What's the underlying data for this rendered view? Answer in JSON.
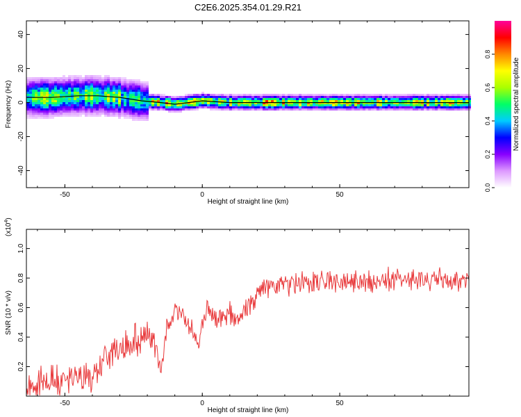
{
  "chart_data": [
    {
      "type": "heatmap",
      "title": "C2E6.2025.354.01.29.R21",
      "xlabel": "Height of straight line (km)",
      "ylabel": "Frequency (Hz)",
      "xlim": [
        -64,
        97
      ],
      "ylim": [
        -50,
        48
      ],
      "xticks": [
        -50,
        0,
        50
      ],
      "yticks": [
        -40,
        -20,
        0,
        20,
        40
      ],
      "xtick_labels": [
        "-50",
        "0",
        "50"
      ],
      "ytick_labels": [
        "-40",
        "-20",
        "0",
        "20",
        "40"
      ],
      "ridge": {
        "x": [
          -64,
          -55,
          -45,
          -38,
          -30,
          -22,
          -15,
          -10,
          -5,
          0,
          10,
          20,
          40,
          60,
          80,
          97
        ],
        "freq": [
          3,
          3,
          4,
          4,
          3,
          1,
          0,
          -1,
          0,
          1,
          0,
          0,
          0,
          0,
          0,
          0
        ]
      },
      "colorbar": {
        "label": "Normalized spectral amplitude",
        "range": [
          0,
          1
        ],
        "ticks": [
          0.0,
          0.2,
          0.4,
          0.6,
          0.8
        ],
        "tick_labels": [
          "0.0",
          "0.2",
          "0.4",
          "0.6",
          "0.8"
        ],
        "colors": [
          "#ffffff",
          "#dd99ff",
          "#8800ff",
          "#0000ff",
          "#00ccff",
          "#00ff66",
          "#aaff00",
          "#ffff00",
          "#ff8800",
          "#ff0000",
          "#ff0099"
        ]
      }
    },
    {
      "type": "line",
      "xlabel": "Height of straight line (km)",
      "ylabel": "SNR (10 * v/v)",
      "scale_label": "(x10",
      "scale_exponent": "4",
      "scale_close": ")",
      "xlim": [
        -64,
        97
      ],
      "ylim": [
        0.0,
        1.13
      ],
      "xticks": [
        -50,
        0,
        50
      ],
      "yticks": [
        0.2,
        0.4,
        0.6,
        0.8,
        1.0
      ],
      "xtick_labels": [
        "-50",
        "0",
        "50"
      ],
      "ytick_labels": [
        "0.2",
        "0.4",
        "0.6",
        "0.8",
        "1.0"
      ],
      "series": [
        {
          "name": "SNR",
          "color": "#e8383a",
          "x": [
            -64,
            -60,
            -55,
            -50,
            -45,
            -40,
            -37,
            -34,
            -30,
            -27,
            -25,
            -22,
            -20,
            -18,
            -15,
            -13,
            -11,
            -9,
            -7,
            -5,
            -3,
            -1,
            0,
            2,
            4,
            6,
            8,
            10,
            12,
            14,
            16,
            18,
            20,
            22,
            25,
            28,
            30,
            32,
            35,
            40,
            45,
            50,
            55,
            60,
            65,
            70,
            75,
            78,
            80,
            82,
            83,
            84,
            86,
            88,
            90,
            92,
            94,
            97
          ],
          "values": [
            0.06,
            0.08,
            0.1,
            0.1,
            0.12,
            0.13,
            0.18,
            0.28,
            0.32,
            0.36,
            0.38,
            0.4,
            0.42,
            0.38,
            0.2,
            0.44,
            0.58,
            0.56,
            0.52,
            0.48,
            0.42,
            0.34,
            0.52,
            0.6,
            0.55,
            0.52,
            0.54,
            0.58,
            0.5,
            0.52,
            0.6,
            0.64,
            0.68,
            0.72,
            0.74,
            0.73,
            0.75,
            0.76,
            0.77,
            0.77,
            0.78,
            0.78,
            0.78,
            0.78,
            0.79,
            0.79,
            0.79,
            0.8,
            0.79,
            0.78,
            0.72,
            0.8,
            0.8,
            0.78,
            0.8,
            0.78,
            0.77,
            0.8
          ]
        }
      ]
    }
  ]
}
